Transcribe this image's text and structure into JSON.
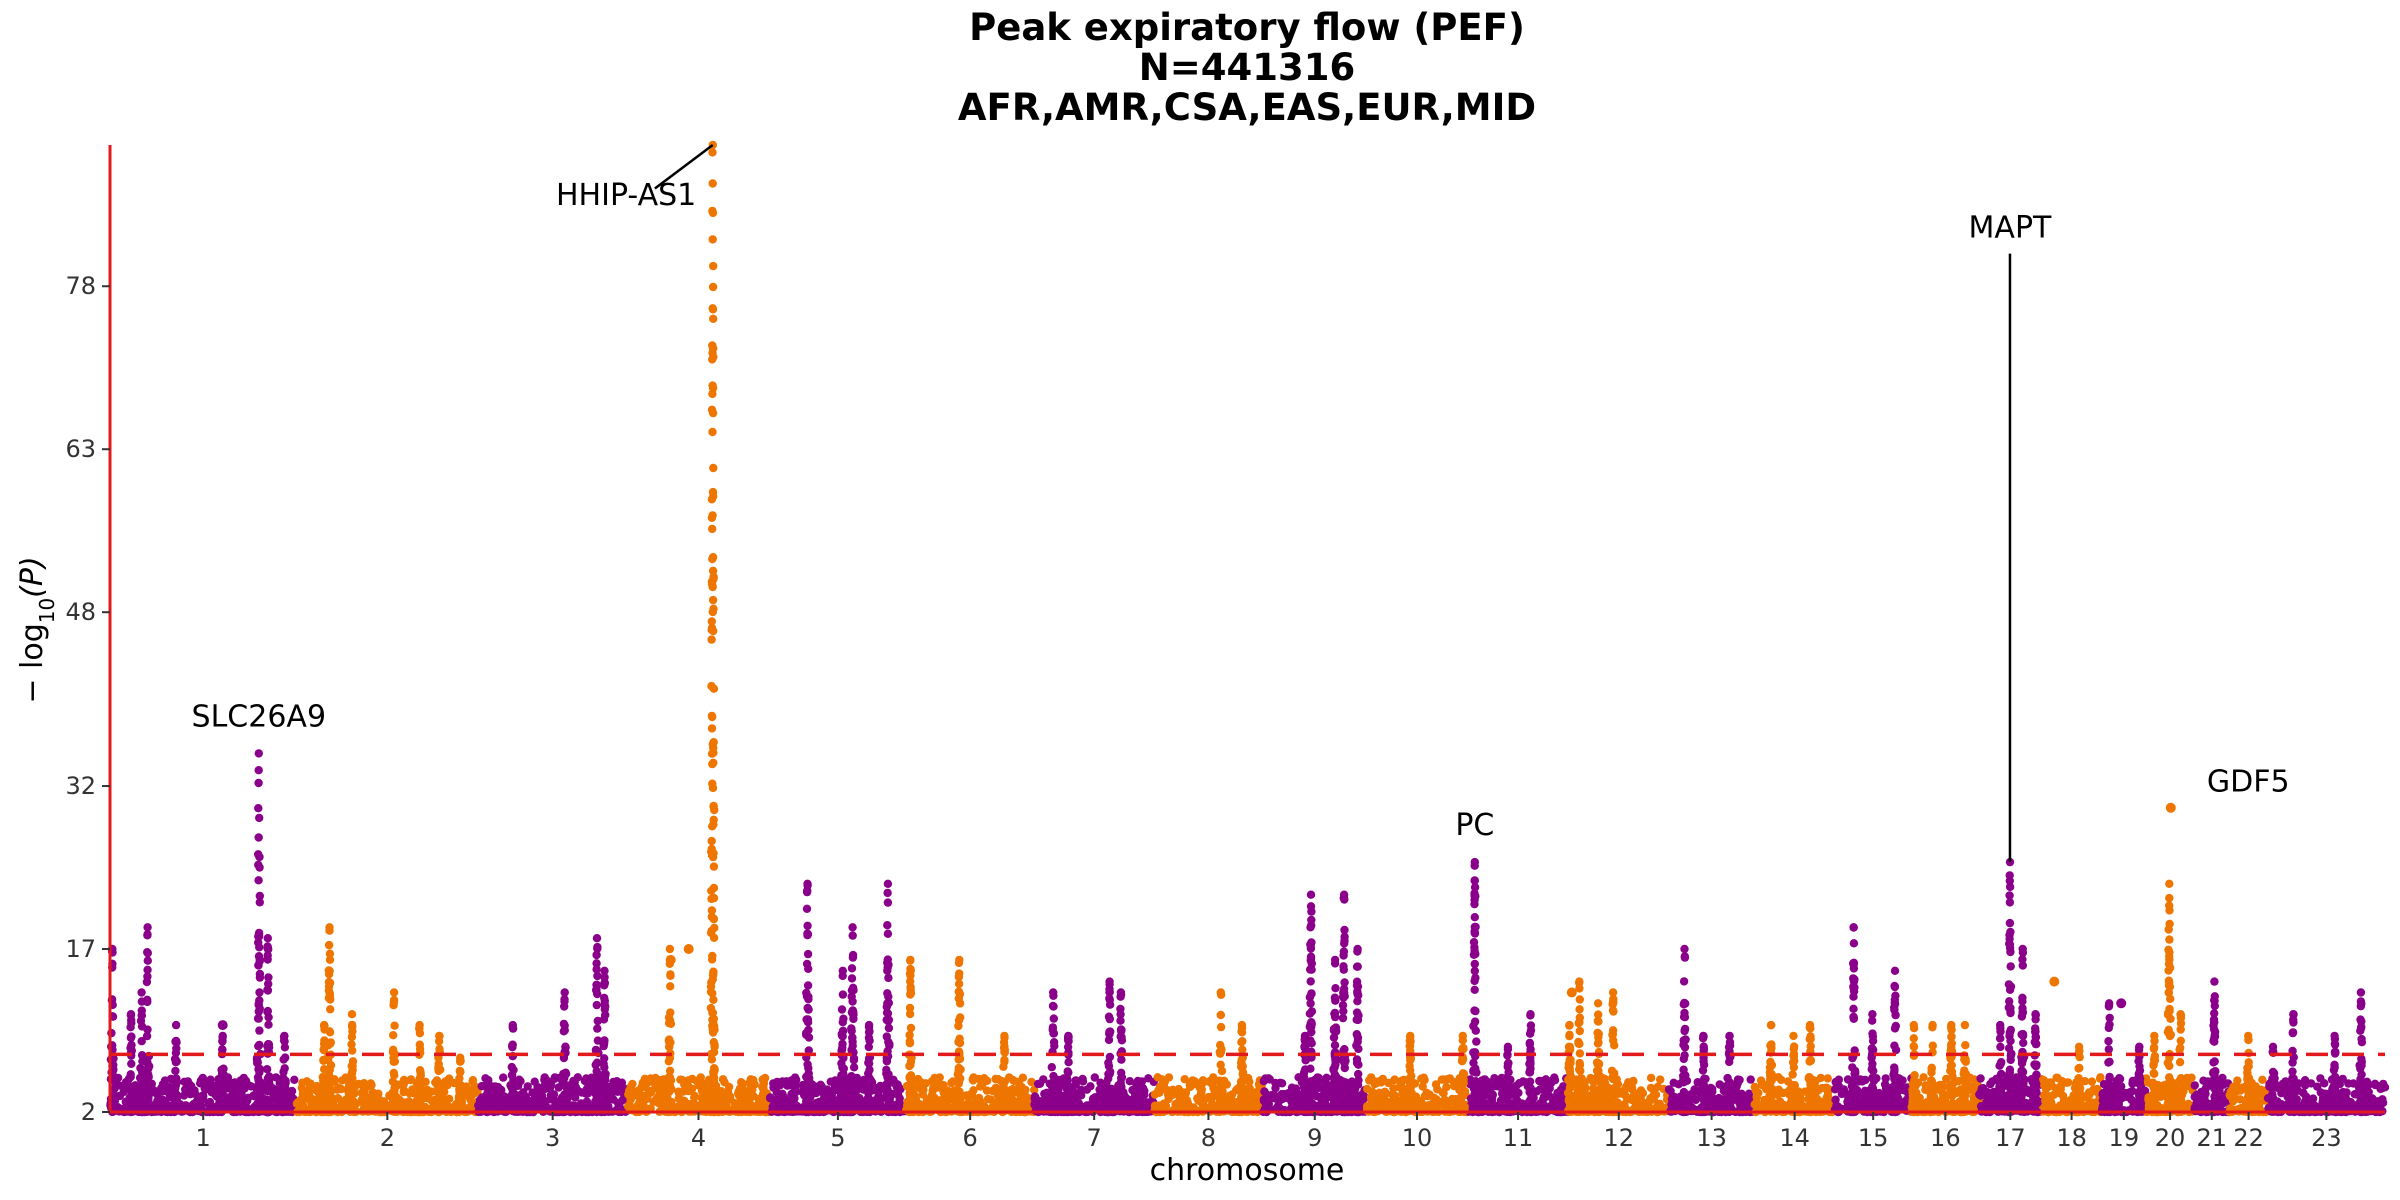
{
  "chart_data": {
    "type": "scatter",
    "title": [
      "Peak expiratory flow (PEF)",
      "N=441316",
      "AFR,AMR,CSA,EAS,EUR,MID"
    ],
    "xlabel": "chromosome",
    "ylabel_main": "− log",
    "ylabel_sub": "10",
    "ylabel_var": "(P)",
    "ylim": [
      2,
      91
    ],
    "yticks": [
      2,
      17,
      32,
      48,
      63,
      78
    ],
    "colors": {
      "odd": "#8B008B",
      "even": "#EE7600",
      "axis": "#E31A1C",
      "threshold": "#E31A1C"
    },
    "threshold": 7.3,
    "chromosomes": [
      {
        "label": "1",
        "start": 0,
        "len": 248
      },
      {
        "label": "2",
        "start": 248,
        "len": 242
      },
      {
        "label": "3",
        "start": 490,
        "len": 198
      },
      {
        "label": "4",
        "start": 688,
        "len": 190
      },
      {
        "label": "5",
        "start": 878,
        "len": 181
      },
      {
        "label": "6",
        "start": 1059,
        "len": 171
      },
      {
        "label": "7",
        "start": 1230,
        "len": 159
      },
      {
        "label": "8",
        "start": 1389,
        "len": 145
      },
      {
        "label": "9",
        "start": 1534,
        "len": 138
      },
      {
        "label": "10",
        "start": 1672,
        "len": 134
      },
      {
        "label": "11",
        "start": 1806,
        "len": 135
      },
      {
        "label": "12",
        "start": 1941,
        "len": 133
      },
      {
        "label": "13",
        "start": 2074,
        "len": 114
      },
      {
        "label": "14",
        "start": 2188,
        "len": 107
      },
      {
        "label": "15",
        "start": 2295,
        "len": 102
      },
      {
        "label": "16",
        "start": 2397,
        "len": 90
      },
      {
        "label": "17",
        "start": 2487,
        "len": 83
      },
      {
        "label": "18",
        "start": 2570,
        "len": 80
      },
      {
        "label": "19",
        "start": 2650,
        "len": 59
      },
      {
        "label": "20",
        "start": 2709,
        "len": 64
      },
      {
        "label": "21",
        "start": 2773,
        "len": 47
      },
      {
        "label": "22",
        "start": 2820,
        "len": 51
      },
      {
        "label": "23",
        "start": 2871,
        "len": 156
      }
    ],
    "xrange": [
      0,
      3027
    ],
    "peaks": [
      {
        "x": 3,
        "y": 17
      },
      {
        "x": 28,
        "y": 11
      },
      {
        "x": 42,
        "y": 13
      },
      {
        "x": 50,
        "y": 19
      },
      {
        "x": 88,
        "y": 10
      },
      {
        "x": 150,
        "y": 9
      },
      {
        "x": 198,
        "y": 35
      },
      {
        "x": 210,
        "y": 18
      },
      {
        "x": 232,
        "y": 9
      },
      {
        "x": 285,
        "y": 10
      },
      {
        "x": 292,
        "y": 19
      },
      {
        "x": 322,
        "y": 11
      },
      {
        "x": 378,
        "y": 13
      },
      {
        "x": 412,
        "y": 10
      },
      {
        "x": 438,
        "y": 9
      },
      {
        "x": 466,
        "y": 7
      },
      {
        "x": 536,
        "y": 10
      },
      {
        "x": 605,
        "y": 13
      },
      {
        "x": 648,
        "y": 18
      },
      {
        "x": 658,
        "y": 15
      },
      {
        "x": 745,
        "y": 17
      },
      {
        "x": 802,
        "y": 91
      },
      {
        "x": 928,
        "y": 23
      },
      {
        "x": 975,
        "y": 15
      },
      {
        "x": 988,
        "y": 19
      },
      {
        "x": 1010,
        "y": 10
      },
      {
        "x": 1035,
        "y": 23
      },
      {
        "x": 1065,
        "y": 16
      },
      {
        "x": 1130,
        "y": 16
      },
      {
        "x": 1190,
        "y": 9
      },
      {
        "x": 1255,
        "y": 13
      },
      {
        "x": 1275,
        "y": 9
      },
      {
        "x": 1330,
        "y": 14
      },
      {
        "x": 1345,
        "y": 13
      },
      {
        "x": 1478,
        "y": 13
      },
      {
        "x": 1506,
        "y": 10
      },
      {
        "x": 1590,
        "y": 9
      },
      {
        "x": 1598,
        "y": 22
      },
      {
        "x": 1630,
        "y": 16
      },
      {
        "x": 1642,
        "y": 22
      },
      {
        "x": 1660,
        "y": 17
      },
      {
        "x": 1730,
        "y": 9
      },
      {
        "x": 1800,
        "y": 9
      },
      {
        "x": 1816,
        "y": 25
      },
      {
        "x": 1860,
        "y": 8
      },
      {
        "x": 1890,
        "y": 11
      },
      {
        "x": 1942,
        "y": 10
      },
      {
        "x": 1955,
        "y": 14
      },
      {
        "x": 1980,
        "y": 12
      },
      {
        "x": 2000,
        "y": 13
      },
      {
        "x": 2095,
        "y": 17
      },
      {
        "x": 2120,
        "y": 9
      },
      {
        "x": 2155,
        "y": 9
      },
      {
        "x": 2210,
        "y": 10
      },
      {
        "x": 2240,
        "y": 9
      },
      {
        "x": 2262,
        "y": 10
      },
      {
        "x": 2320,
        "y": 19
      },
      {
        "x": 2345,
        "y": 11
      },
      {
        "x": 2375,
        "y": 15
      },
      {
        "x": 2400,
        "y": 10
      },
      {
        "x": 2425,
        "y": 10
      },
      {
        "x": 2450,
        "y": 10
      },
      {
        "x": 2468,
        "y": 10
      },
      {
        "x": 2515,
        "y": 10
      },
      {
        "x": 2528,
        "y": 25
      },
      {
        "x": 2545,
        "y": 17
      },
      {
        "x": 2562,
        "y": 11
      },
      {
        "x": 2620,
        "y": 8
      },
      {
        "x": 2660,
        "y": 12
      },
      {
        "x": 2700,
        "y": 8
      },
      {
        "x": 2720,
        "y": 9
      },
      {
        "x": 2740,
        "y": 23
      },
      {
        "x": 2755,
        "y": 11
      },
      {
        "x": 2800,
        "y": 14
      },
      {
        "x": 2845,
        "y": 9
      },
      {
        "x": 2878,
        "y": 8
      },
      {
        "x": 2905,
        "y": 11
      },
      {
        "x": 2960,
        "y": 9
      },
      {
        "x": 2995,
        "y": 13
      }
    ],
    "outliers": [
      {
        "x": 150,
        "y": 10
      },
      {
        "x": 746,
        "y": 16
      },
      {
        "x": 770,
        "y": 17
      },
      {
        "x": 1945,
        "y": 13
      },
      {
        "x": 2587,
        "y": 14
      },
      {
        "x": 2676,
        "y": 12
      },
      {
        "x": 2742,
        "y": 30
      }
    ],
    "annotations": [
      {
        "label": "SLC26A9",
        "x": 198,
        "y": 35,
        "tx": 198,
        "ty": 37.5,
        "anchor": "middle",
        "line": false
      },
      {
        "label": "HHIP-AS1",
        "x": 802,
        "y": 91,
        "tx": 780,
        "ty": 85.5,
        "anchor": "end",
        "line": true,
        "lx": 725,
        "ly": 87
      },
      {
        "label": "MAPT",
        "x": 2528,
        "y": 25,
        "tx": 2528,
        "ty": 82.5,
        "anchor": "middle",
        "line": true,
        "lx": 2528,
        "ly": 81
      },
      {
        "label": "PC",
        "x": 1816,
        "y": 25,
        "tx": 1816,
        "ty": 27.5,
        "anchor": "middle",
        "line": false
      },
      {
        "label": "GDF5",
        "x": 2742,
        "y": 30,
        "tx": 2790,
        "ty": 31.5,
        "anchor": "start",
        "line": false
      }
    ]
  }
}
